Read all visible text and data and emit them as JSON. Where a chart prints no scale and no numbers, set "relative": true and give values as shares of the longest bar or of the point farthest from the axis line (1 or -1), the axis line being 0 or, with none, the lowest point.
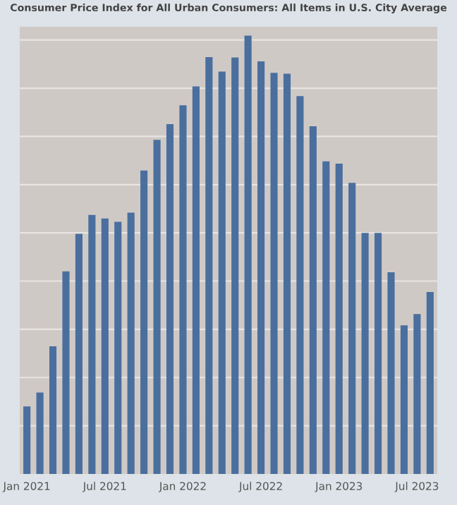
{
  "chart_data": {
    "type": "bar",
    "title": "Consumer Price Index for All Urban Consumers: All Items in U.S. City Average",
    "relative": true,
    "categories": [
      "Jan 2021",
      null,
      null,
      null,
      null,
      null,
      "Jul 2021",
      null,
      null,
      null,
      null,
      null,
      "Jan 2022",
      null,
      null,
      null,
      null,
      null,
      "Jul 2022",
      null,
      null,
      null,
      null,
      null,
      "Jan 2023",
      null,
      null,
      null,
      null,
      null,
      "Jul 2023",
      null
    ],
    "values": [
      0.154,
      0.186,
      0.291,
      0.462,
      0.548,
      0.591,
      0.583,
      0.575,
      0.596,
      0.692,
      0.762,
      0.798,
      0.841,
      0.884,
      0.951,
      0.918,
      0.95,
      1.0,
      0.941,
      0.915,
      0.913,
      0.862,
      0.793,
      0.713,
      0.708,
      0.664,
      0.55,
      0.55,
      0.46,
      0.339,
      0.365,
      0.415
    ],
    "color": "#4a6f9e",
    "grid": "y"
  }
}
